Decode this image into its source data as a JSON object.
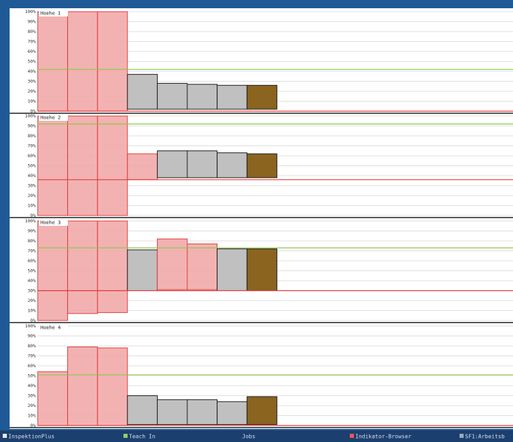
{
  "chart_data": [
    {
      "type": "bar",
      "title": "Hoehe 1",
      "ylim": [
        0,
        100
      ],
      "yticks": [
        {
          "value": 0,
          "label": "0%"
        },
        {
          "value": 10,
          "label": "10%"
        },
        {
          "value": 20,
          "label": "20%"
        },
        {
          "value": 30,
          "label": "30%"
        },
        {
          "value": 40,
          "label": "40%"
        },
        {
          "value": 50,
          "label": "50%"
        },
        {
          "value": 60,
          "label": "60%"
        },
        {
          "value": 70,
          "label": "70%"
        },
        {
          "value": 80,
          "label": "80%"
        },
        {
          "value": 90,
          "label": "90%"
        },
        {
          "value": 100,
          "label": "100%"
        }
      ],
      "lows": [
        0,
        0,
        0,
        2,
        2,
        2,
        2,
        2
      ],
      "highs": [
        100,
        100,
        100,
        37,
        28,
        27,
        26,
        26
      ],
      "colors": [
        "#f2aaaa",
        "#f2aaaa",
        "#f2aaaa",
        "#c0c0c0",
        "#c0c0c0",
        "#c0c0c0",
        "#c0c0c0",
        "#8b6420"
      ],
      "green_line": 42,
      "red_line": 0
    },
    {
      "type": "bar",
      "title": "Hoehe 2",
      "ylim": [
        0,
        100
      ],
      "yticks": [
        {
          "value": 0,
          "label": "0%"
        },
        {
          "value": 10,
          "label": "10%"
        },
        {
          "value": 20,
          "label": "20%"
        },
        {
          "value": 30,
          "label": "30%"
        },
        {
          "value": 40,
          "label": "40%"
        },
        {
          "value": 50,
          "label": "50%"
        },
        {
          "value": 60,
          "label": "60%"
        },
        {
          "value": 70,
          "label": "70%"
        },
        {
          "value": 80,
          "label": "80%"
        },
        {
          "value": 90,
          "label": "90%"
        },
        {
          "value": 100,
          "label": "100%"
        }
      ],
      "lows": [
        0,
        0,
        0,
        36,
        38,
        38,
        38,
        38
      ],
      "highs": [
        100,
        100,
        100,
        62,
        65,
        65,
        63,
        62
      ],
      "colors": [
        "#f2aaaa",
        "#f2aaaa",
        "#f2aaaa",
        "#f2aaaa",
        "#c0c0c0",
        "#c0c0c0",
        "#c0c0c0",
        "#8b6420"
      ],
      "green_line": 92,
      "red_line": 36
    },
    {
      "type": "bar",
      "title": "Hoehe 3",
      "ylim": [
        0,
        100
      ],
      "yticks": [
        {
          "value": 0,
          "label": "0%"
        },
        {
          "value": 10,
          "label": "10%"
        },
        {
          "value": 20,
          "label": "20%"
        },
        {
          "value": 30,
          "label": "30%"
        },
        {
          "value": 40,
          "label": "40%"
        },
        {
          "value": 50,
          "label": "50%"
        },
        {
          "value": 60,
          "label": "60%"
        },
        {
          "value": 70,
          "label": "70%"
        },
        {
          "value": 80,
          "label": "80%"
        },
        {
          "value": 90,
          "label": "90%"
        },
        {
          "value": 100,
          "label": "100%"
        }
      ],
      "lows": [
        0,
        7,
        8,
        30,
        31,
        31,
        30,
        30
      ],
      "highs": [
        100,
        100,
        100,
        71,
        82,
        77,
        72,
        72
      ],
      "colors": [
        "#f2aaaa",
        "#f2aaaa",
        "#f2aaaa",
        "#c0c0c0",
        "#f2aaaa",
        "#f2aaaa",
        "#c0c0c0",
        "#8b6420"
      ],
      "green_line": 73,
      "red_line": 30
    },
    {
      "type": "bar",
      "title": "Hoehe 4",
      "ylim": [
        0,
        100
      ],
      "yticks": [
        {
          "value": 0,
          "label": "0%"
        },
        {
          "value": 10,
          "label": "10%"
        },
        {
          "value": 20,
          "label": "20%"
        },
        {
          "value": 30,
          "label": "30%"
        },
        {
          "value": 40,
          "label": "40%"
        },
        {
          "value": 50,
          "label": "50%"
        },
        {
          "value": 60,
          "label": "60%"
        },
        {
          "value": 70,
          "label": "70%"
        },
        {
          "value": 80,
          "label": "80%"
        },
        {
          "value": 90,
          "label": "90%"
        },
        {
          "value": 100,
          "label": "100%"
        }
      ],
      "lows": [
        0,
        0,
        0,
        1,
        1,
        1,
        1,
        1
      ],
      "highs": [
        54,
        79,
        78,
        30,
        26,
        26,
        24,
        29
      ],
      "colors": [
        "#f2aaaa",
        "#f2aaaa",
        "#f2aaaa",
        "#c0c0c0",
        "#c0c0c0",
        "#c0c0c0",
        "#c0c0c0",
        "#8b6420"
      ],
      "green_line": 51,
      "red_line": 0
    }
  ],
  "taskbar": [
    "InspektionPlus",
    "Teach In",
    "Jobs",
    "Indikator-Browser",
    "SF1:Arbeitsb"
  ]
}
